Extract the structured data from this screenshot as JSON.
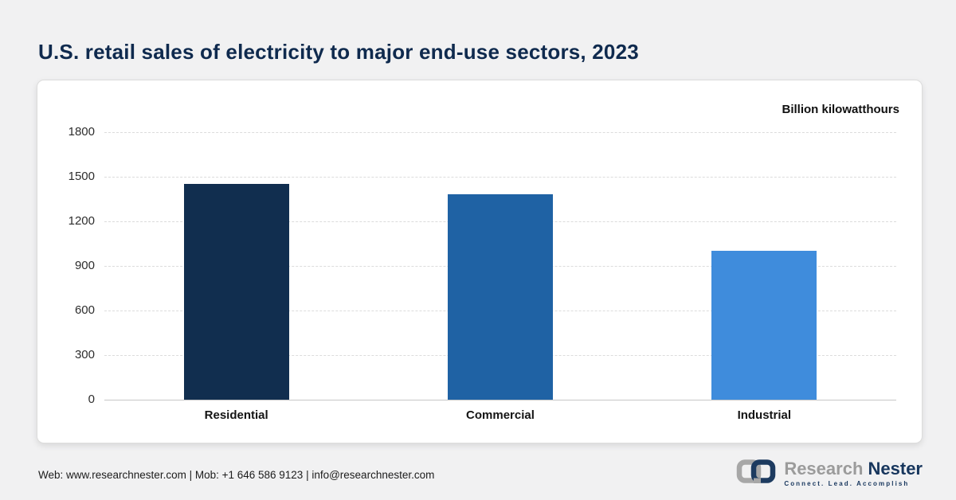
{
  "header": {
    "title": "U.S. retail sales of electricity to major end-use sectors, 2023"
  },
  "chart_data": {
    "type": "bar",
    "title": "U.S. retail sales of electricity to major end-use sectors, 2023",
    "unit_label": "Billion kilowatthours",
    "categories": [
      "Residential",
      "Commercial",
      "Industrial"
    ],
    "values": [
      1450,
      1380,
      1000
    ],
    "bar_colors": [
      "#112e4f",
      "#1f62a4",
      "#3f8cdc"
    ],
    "xlabel": "",
    "ylabel": "Billion kilowatthours",
    "ylim": [
      0,
      1800
    ],
    "yticks": [
      0,
      300,
      600,
      900,
      1200,
      1500,
      1800
    ],
    "grid": "horizontal-dashed",
    "legend": "none"
  },
  "footer": {
    "contact": "Web: www.researchnester.com | Mob: +1 646 586 9123 | info@researchnester.com",
    "logo": {
      "brand_primary": "Research",
      "brand_secondary": "Nester",
      "tagline": "Connect. Lead. Accomplish"
    }
  },
  "colors": {
    "title_navy": "#0f2a4e",
    "page_background": "#f1f1f2",
    "card_background": "#ffffff",
    "logo_gray": "#9b9b9b",
    "logo_navy": "#17365d"
  }
}
